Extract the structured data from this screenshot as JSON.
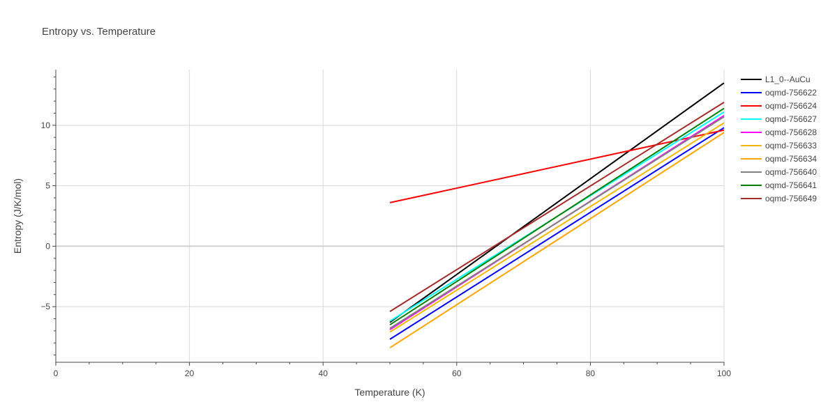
{
  "chart_data": {
    "type": "line",
    "title": "Entropy vs. Temperature",
    "xlabel": "Temperature (K)",
    "ylabel": "Entropy (J/K/mol)",
    "xlim": [
      0,
      100
    ],
    "ylim": [
      -9.6,
      14.6
    ],
    "x_ticks": [
      0,
      20,
      40,
      60,
      80,
      100
    ],
    "x_tick_labels": [
      "0",
      "20",
      "40",
      "60",
      "80",
      "100"
    ],
    "y_ticks": [
      -5,
      0,
      5,
      10
    ],
    "y_tick_labels": [
      "−5",
      "0",
      "5",
      "10"
    ],
    "grid": true,
    "legend_position": "right",
    "series": [
      {
        "name": "L1_0--AuCu",
        "color": "#000000",
        "x": [
          50,
          100
        ],
        "y": [
          -6.3,
          13.5
        ]
      },
      {
        "name": "oqmd-756622",
        "color": "#0000ff",
        "x": [
          50,
          100
        ],
        "y": [
          -7.7,
          9.8
        ]
      },
      {
        "name": "oqmd-756624",
        "color": "#ff0000",
        "x": [
          50,
          100
        ],
        "y": [
          3.6,
          9.6
        ]
      },
      {
        "name": "oqmd-756627",
        "color": "#00ffff",
        "x": [
          50,
          100
        ],
        "y": [
          -6.2,
          11.1
        ]
      },
      {
        "name": "oqmd-756628",
        "color": "#ff00ff",
        "x": [
          50,
          100
        ],
        "y": [
          -6.9,
          10.8
        ]
      },
      {
        "name": "oqmd-756633",
        "color": "#f5b800",
        "x": [
          50,
          100
        ],
        "y": [
          -7.1,
          10.2
        ]
      },
      {
        "name": "oqmd-756634",
        "color": "#ffa500",
        "x": [
          50,
          100
        ],
        "y": [
          -8.4,
          9.4
        ]
      },
      {
        "name": "oqmd-756640",
        "color": "#808080",
        "x": [
          50,
          100
        ],
        "y": [
          -6.8,
          10.7
        ]
      },
      {
        "name": "oqmd-756641",
        "color": "#008000",
        "x": [
          50,
          100
        ],
        "y": [
          -6.5,
          11.4
        ]
      },
      {
        "name": "oqmd-756649",
        "color": "#a52a2a",
        "x": [
          50,
          100
        ],
        "y": [
          -5.4,
          11.9
        ]
      }
    ]
  }
}
